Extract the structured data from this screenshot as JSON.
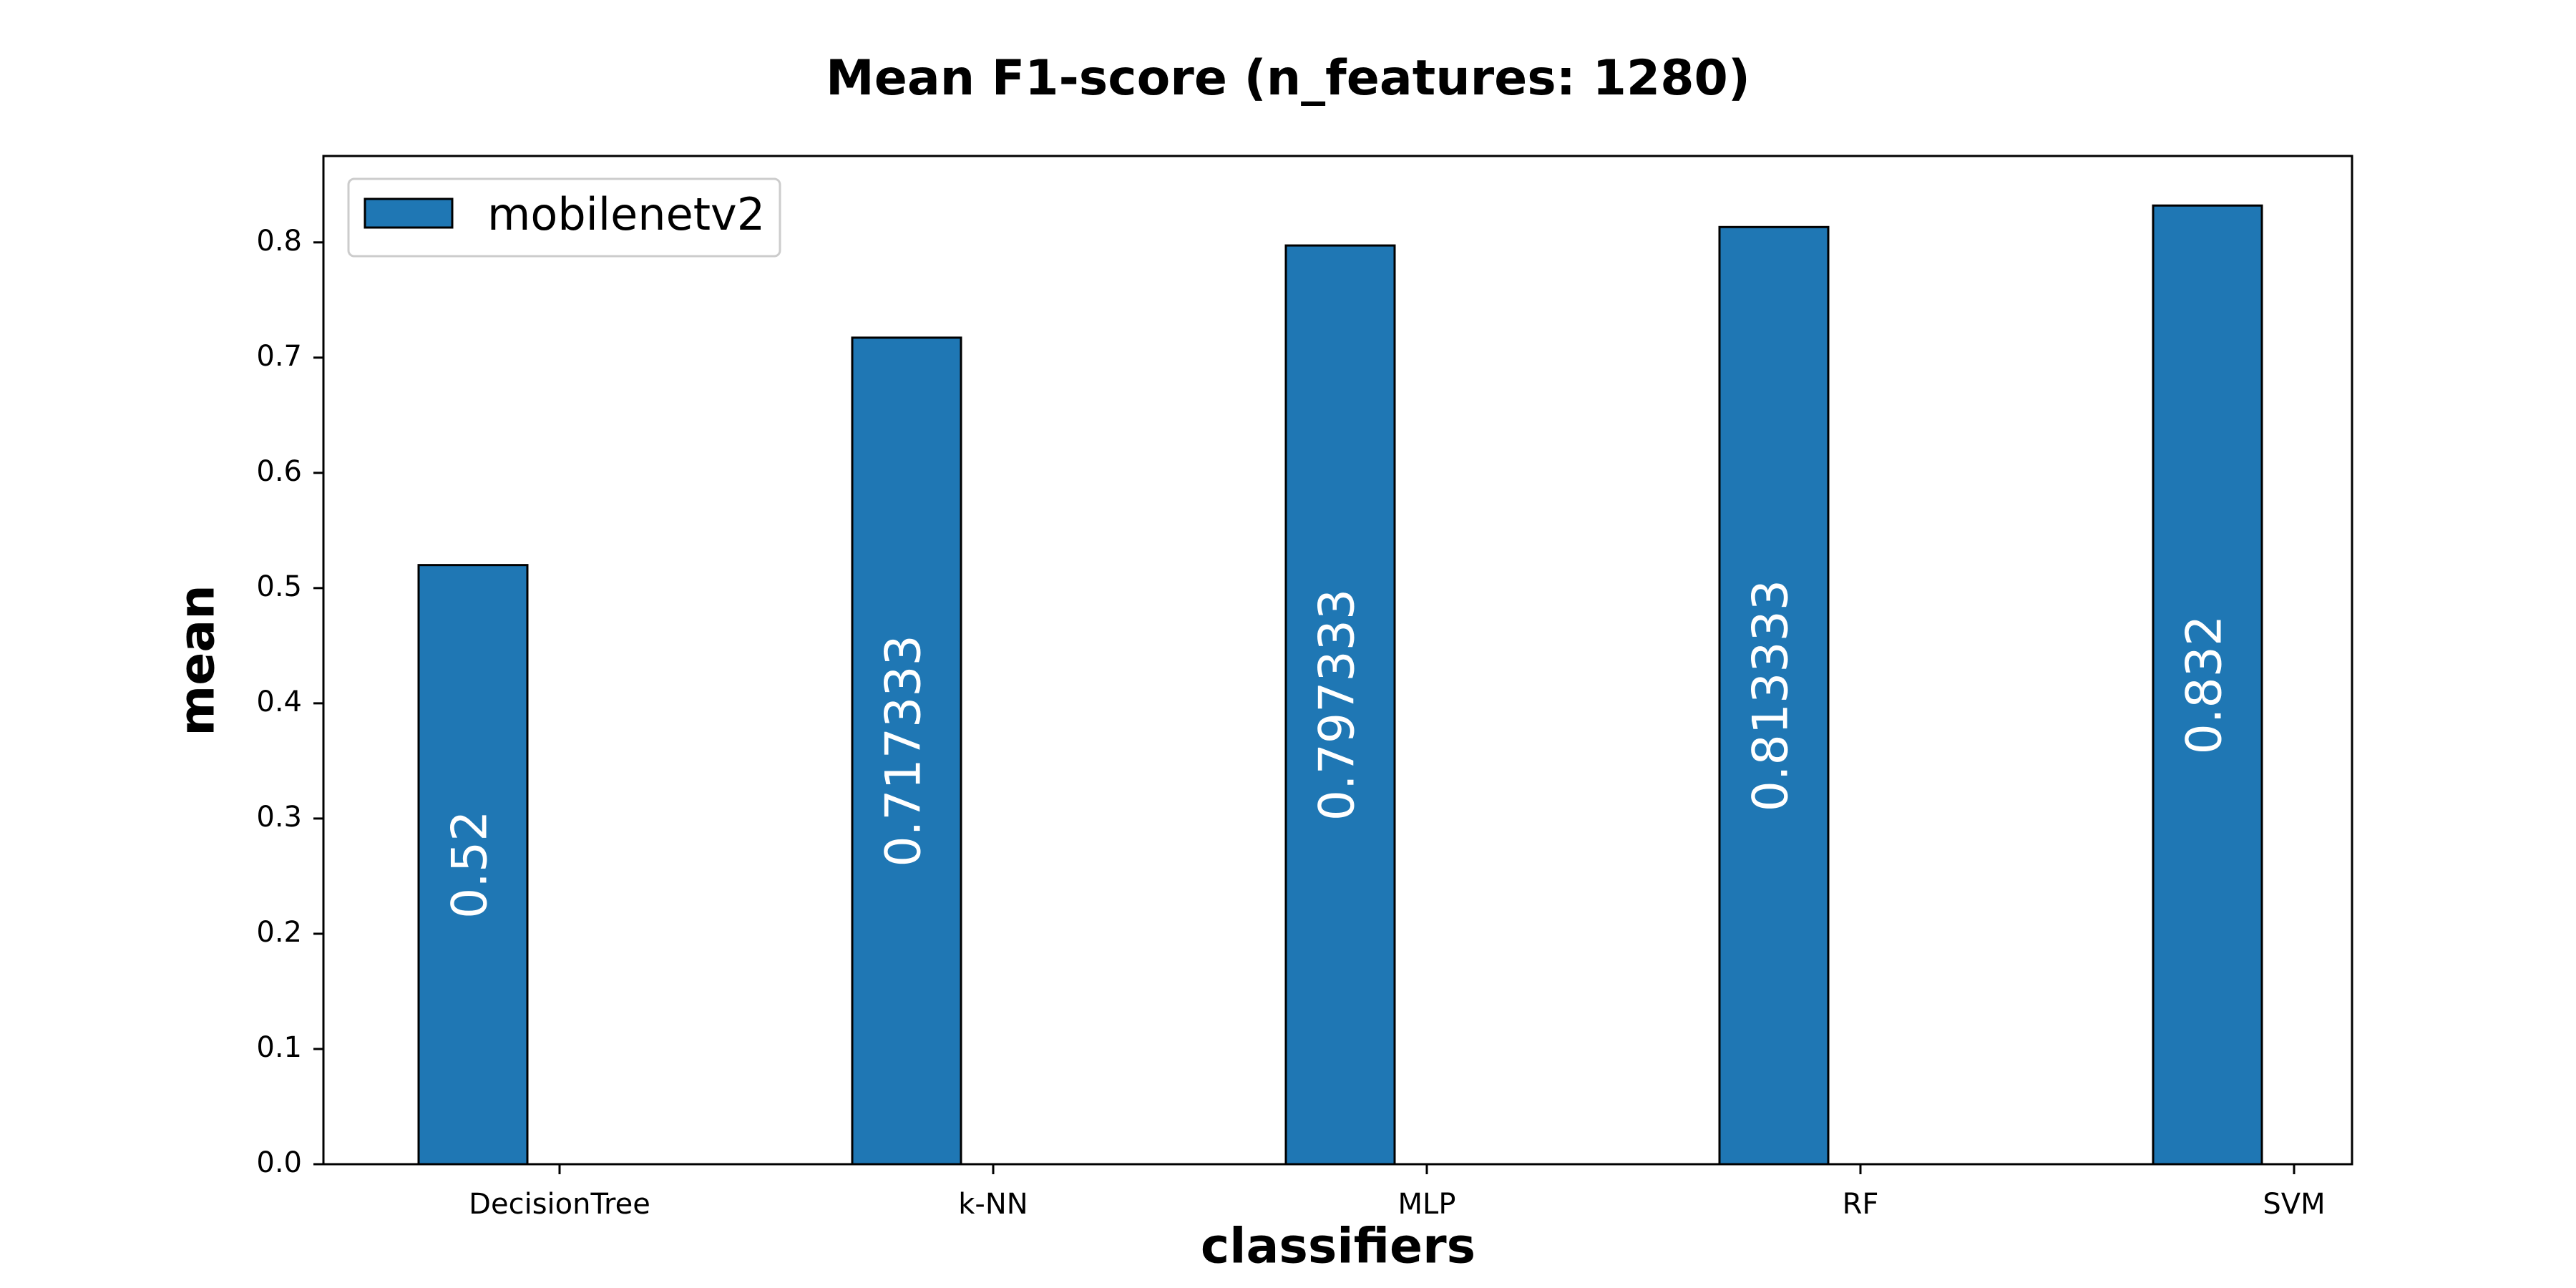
{
  "chart_data": {
    "type": "bar",
    "title": "Mean F1-score (n_features: 1280)",
    "xlabel": "classifiers",
    "ylabel": "mean",
    "categories": [
      "DecisionTree",
      "k-NN",
      "MLP",
      "RF",
      "SVM"
    ],
    "series": [
      {
        "name": "mobilenetv2",
        "values": [
          0.52,
          0.717333,
          0.797333,
          0.813333,
          0.832
        ],
        "labels": [
          "0.52",
          "0.717333",
          "0.797333",
          "0.813333",
          "0.832"
        ],
        "color": "#1f77b4"
      }
    ],
    "ylim": [
      0,
      0.875
    ],
    "yticks": [
      "0.0",
      "0.1",
      "0.2",
      "0.3",
      "0.4",
      "0.5",
      "0.6",
      "0.7",
      "0.8"
    ],
    "grid": false,
    "legend_position": "top-left"
  }
}
